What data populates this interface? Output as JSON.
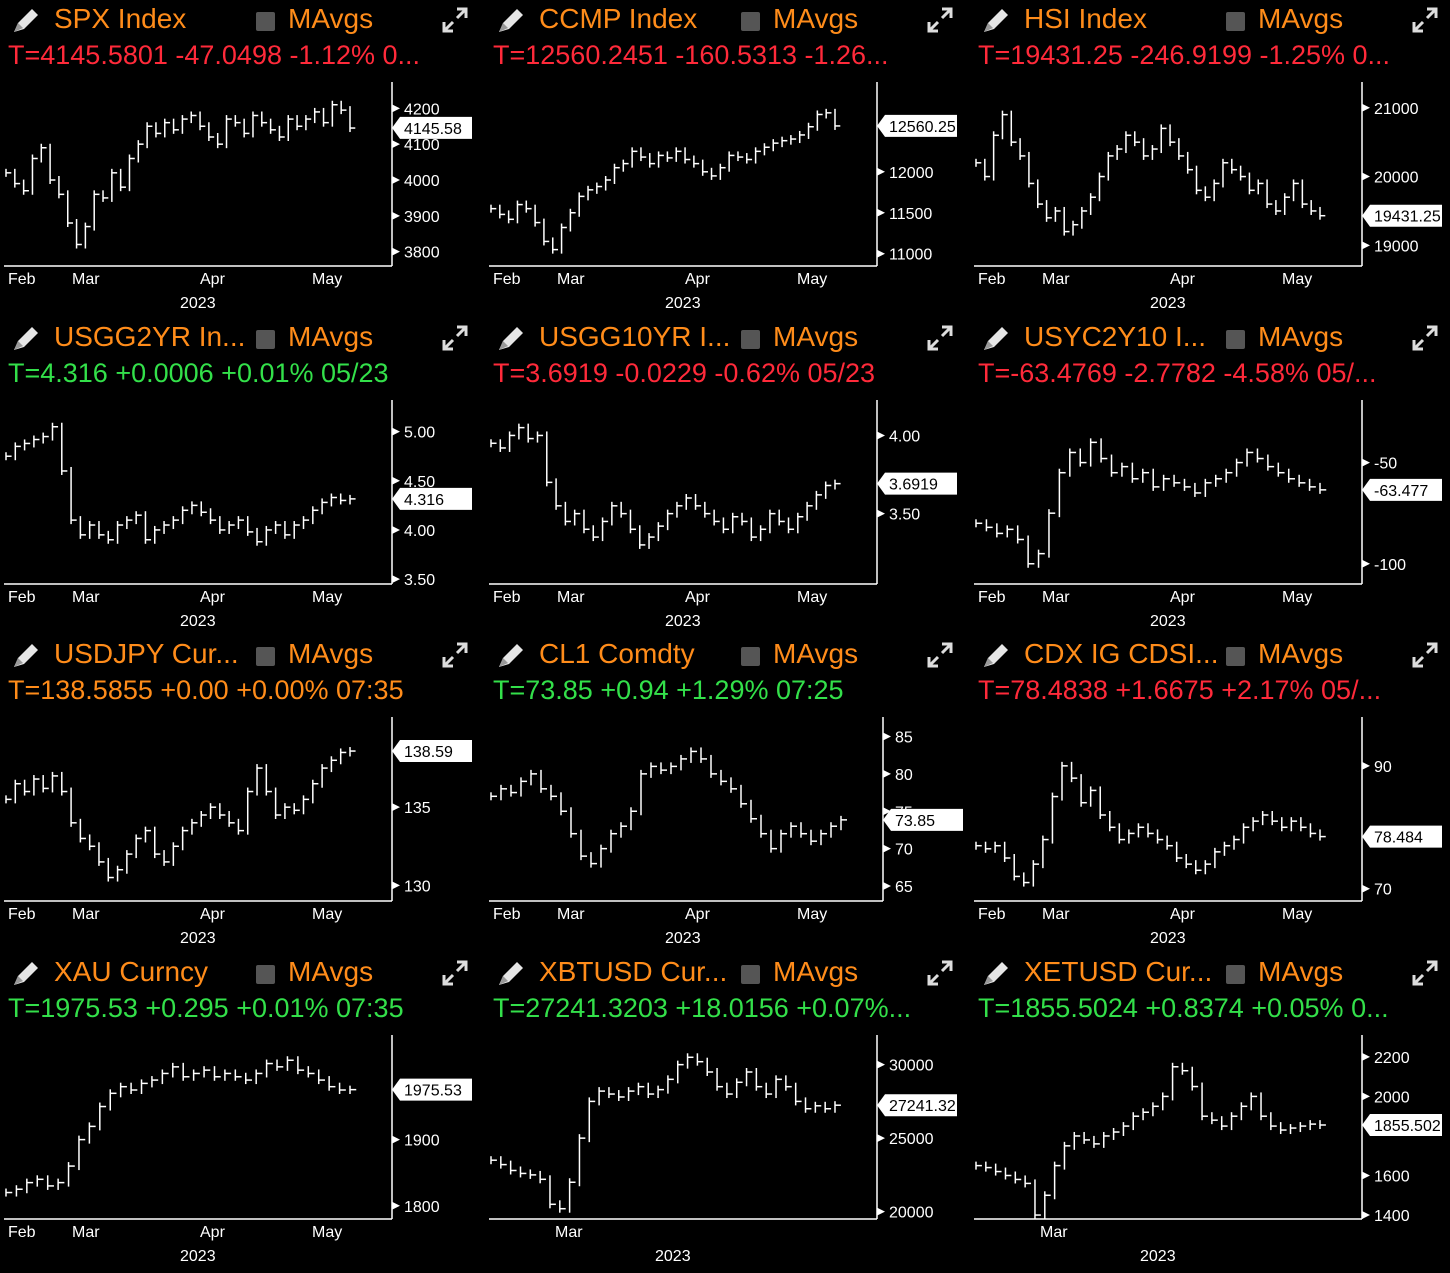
{
  "panels": [
    {
      "id": "spx",
      "title": "SPX Index",
      "mavgs": "MAvgs",
      "quote": "T=4145.5801 -47.0498 -1.12% 0...",
      "quote_color": "red",
      "yticks": [
        "4200",
        "4100",
        "4000",
        "3900",
        "3800"
      ],
      "ytick_vals": [
        4200,
        4100,
        4000,
        3900,
        3800
      ],
      "ymin": 3760,
      "ymax": 4240,
      "last_label": "4145.58",
      "last_val": 4145.58,
      "months": [
        "Feb",
        "Mar",
        "Apr",
        "May"
      ],
      "year": "2023",
      "series": [
        4020,
        3990,
        3970,
        4060,
        4090,
        4000,
        3960,
        3880,
        3820,
        3870,
        3960,
        3950,
        4020,
        3980,
        4060,
        4100,
        4150,
        4130,
        4160,
        4140,
        4170,
        4180,
        4150,
        4120,
        4100,
        4170,
        4160,
        4130,
        4180,
        4160,
        4140,
        4120,
        4170,
        4150,
        4170,
        4190,
        4160,
        4210,
        4195,
        4145
      ]
    },
    {
      "id": "ccmp",
      "title": "CCMP Index",
      "mavgs": "MAvgs",
      "quote": "T=12560.2451 -160.5313 -1.26...",
      "quote_color": "red",
      "yticks": [
        "12000",
        "11500",
        "11000"
      ],
      "ytick_vals": [
        12000,
        11500,
        11000
      ],
      "ymin": 10850,
      "ymax": 12950,
      "last_label": "12560.25",
      "last_val": 12560.25,
      "months": [
        "Feb",
        "Mar",
        "Apr",
        "May"
      ],
      "year": "2023",
      "series": [
        11550,
        11480,
        11420,
        11600,
        11550,
        11380,
        11150,
        11050,
        11320,
        11500,
        11700,
        11780,
        11820,
        11900,
        12050,
        12100,
        12250,
        12180,
        12100,
        12200,
        12170,
        12250,
        12150,
        12100,
        12000,
        11950,
        12050,
        12200,
        12180,
        12150,
        12250,
        12300,
        12350,
        12380,
        12400,
        12450,
        12550,
        12700,
        12720,
        12560
      ]
    },
    {
      "id": "hsi",
      "title": "HSI Index",
      "mavgs": "MAvgs",
      "quote": "T=19431.25 -246.9199 -1.25% 0...",
      "quote_color": "red",
      "yticks": [
        "21000",
        "20000",
        "19000"
      ],
      "ytick_vals": [
        21000,
        20000,
        19000
      ],
      "ymin": 18700,
      "ymax": 21200,
      "last_label": "19431.25",
      "last_val": 19431.25,
      "months": [
        "Feb",
        "Mar",
        "Apr",
        "May"
      ],
      "year": "2023",
      "series": [
        20200,
        20000,
        20600,
        20900,
        20500,
        20300,
        19900,
        19600,
        19400,
        19500,
        19200,
        19300,
        19500,
        19700,
        20000,
        20300,
        20400,
        20600,
        20500,
        20300,
        20400,
        20700,
        20500,
        20300,
        20100,
        19800,
        19700,
        19900,
        20200,
        20100,
        20000,
        19800,
        19900,
        19600,
        19500,
        19700,
        19900,
        19600,
        19500,
        19431
      ]
    },
    {
      "id": "usgg2yr",
      "title": "USGG2YR In...",
      "mavgs": "MAvgs",
      "quote": "T=4.316 +0.0006 +0.01% 05/23",
      "quote_color": "green",
      "yticks": [
        "5.00",
        "4.50",
        "4.00",
        "3.50"
      ],
      "ytick_vals": [
        5.0,
        4.5,
        4.0,
        3.5
      ],
      "ymin": 3.45,
      "ymax": 5.2,
      "last_label": "4.316",
      "last_val": 4.316,
      "months": [
        "Feb",
        "Mar",
        "Apr",
        "May"
      ],
      "year": "2023",
      "series": [
        4.75,
        4.85,
        4.88,
        4.92,
        4.95,
        5.05,
        4.6,
        4.1,
        3.95,
        4.05,
        3.95,
        3.9,
        4.05,
        4.1,
        4.15,
        3.9,
        4.0,
        4.05,
        4.1,
        4.2,
        4.25,
        4.18,
        4.1,
        4.0,
        4.05,
        4.1,
        3.98,
        3.88,
        4.0,
        4.05,
        3.95,
        4.05,
        4.1,
        4.2,
        4.28,
        4.33,
        4.3,
        4.316
      ]
    },
    {
      "id": "usgg10yr",
      "title": "USGG10YR I...",
      "mavgs": "MAvgs",
      "quote": "T=3.6919 -0.0229 -0.62% 05/23",
      "quote_color": "red",
      "yticks": [
        "4.00",
        "3.50"
      ],
      "ytick_vals": [
        4.0,
        3.5
      ],
      "ymin": 3.05,
      "ymax": 4.15,
      "last_label": "3.6919",
      "last_val": 3.6919,
      "months": [
        "Feb",
        "Mar",
        "Apr",
        "May"
      ],
      "year": "2023",
      "series": [
        3.95,
        3.92,
        4.0,
        4.05,
        3.98,
        4.0,
        3.7,
        3.55,
        3.45,
        3.5,
        3.4,
        3.35,
        3.45,
        3.55,
        3.5,
        3.4,
        3.3,
        3.35,
        3.42,
        3.5,
        3.55,
        3.6,
        3.55,
        3.5,
        3.45,
        3.4,
        3.48,
        3.45,
        3.35,
        3.4,
        3.5,
        3.45,
        3.4,
        3.48,
        3.55,
        3.62,
        3.68,
        3.6919
      ]
    },
    {
      "id": "usyc2y10",
      "title": "USYC2Y10 I...",
      "mavgs": "MAvgs",
      "quote": "T=-63.4769 -2.7782 -4.58% 05/...",
      "quote_color": "red",
      "yticks": [
        "-50",
        "-100"
      ],
      "ytick_vals": [
        -50,
        -100
      ],
      "ymin": -110,
      "ymax": -25,
      "last_label": "-63.477",
      "last_val": -63.477,
      "months": [
        "Feb",
        "Mar",
        "Apr",
        "May"
      ],
      "year": "2023",
      "series": [
        -80,
        -82,
        -85,
        -83,
        -88,
        -100,
        -95,
        -75,
        -55,
        -45,
        -50,
        -40,
        -48,
        -55,
        -52,
        -58,
        -55,
        -62,
        -58,
        -60,
        -62,
        -65,
        -60,
        -58,
        -55,
        -50,
        -45,
        -48,
        -52,
        -55,
        -58,
        -60,
        -62,
        -63.477
      ]
    },
    {
      "id": "usdjpy",
      "title": "USDJPY Cur...",
      "mavgs": "MAvgs",
      "quote": "T=138.5855 +0.00 +0.00% 07:35",
      "quote_color": "orange",
      "yticks": [
        "135",
        "130"
      ],
      "ytick_vals": [
        135,
        130
      ],
      "ymin": 129,
      "ymax": 140,
      "last_label": "138.59",
      "last_val": 138.59,
      "months": [
        "Feb",
        "Mar",
        "Apr",
        "May"
      ],
      "year": "2023",
      "series": [
        135.5,
        136.5,
        136.0,
        136.8,
        136.2,
        137.0,
        136.0,
        134.0,
        133.0,
        132.5,
        131.5,
        130.5,
        131.0,
        132.0,
        133.0,
        133.5,
        132.0,
        131.5,
        132.5,
        133.5,
        134.0,
        134.5,
        135.0,
        134.5,
        134.0,
        133.5,
        136.0,
        137.5,
        136.0,
        134.5,
        135.0,
        134.8,
        135.5,
        136.5,
        137.5,
        138.0,
        138.5,
        138.59
      ]
    },
    {
      "id": "cl1",
      "title": "CL1 Comdty",
      "mavgs": "MAvgs",
      "quote": "T=73.85 +0.94 +1.29% 07:25",
      "quote_color": "green",
      "yticks": [
        "85",
        "80",
        "75",
        "70",
        "65"
      ],
      "ytick_vals": [
        85,
        80,
        75,
        70,
        65
      ],
      "ymin": 63,
      "ymax": 86,
      "last_label": "73.85",
      "last_val": 73.85,
      "months": [
        "Feb",
        "Mar",
        "Apr",
        "May"
      ],
      "year": "2023",
      "series": [
        77,
        78,
        77.5,
        79,
        80,
        78,
        77,
        75,
        72,
        69,
        68,
        70,
        72,
        73,
        75,
        80,
        81,
        80.5,
        81,
        82,
        83,
        82,
        80,
        79,
        78,
        76,
        74,
        72,
        70,
        72,
        73,
        72,
        71,
        72,
        73,
        73.85
      ]
    },
    {
      "id": "cdxig",
      "title": "CDX IG CDSI...",
      "mavgs": "MAvgs",
      "quote": "T=78.4838 +1.6675 +2.17% 05/...",
      "quote_color": "red",
      "yticks": [
        "90",
        "70"
      ],
      "ytick_vals": [
        90,
        70
      ],
      "ymin": 68,
      "ymax": 96,
      "last_label": "78.484",
      "last_val": 78.484,
      "months": [
        "Feb",
        "Mar",
        "Apr",
        "May"
      ],
      "year": "2023",
      "series": [
        77,
        76.5,
        77,
        75,
        72,
        71,
        74,
        78,
        85,
        90,
        88,
        84,
        86,
        82,
        80,
        78,
        79,
        80,
        79,
        78,
        77,
        75,
        74,
        73,
        74,
        76,
        77,
        78,
        80,
        81,
        82,
        81,
        80,
        81,
        80,
        79,
        78.484
      ]
    },
    {
      "id": "xau",
      "title": "XAU Curncy",
      "mavgs": "MAvgs",
      "quote": "T=1975.53 +0.295 +0.01% 07:35",
      "quote_color": "green",
      "yticks": [
        "1900",
        "1800"
      ],
      "ytick_vals": [
        1900,
        1800
      ],
      "ymin": 1780,
      "ymax": 2040,
      "last_label": "1975.53",
      "last_val": 1975.53,
      "months": [
        "Feb",
        "Mar",
        "Apr",
        "May"
      ],
      "year": "2023",
      "series": [
        1820,
        1825,
        1835,
        1840,
        1830,
        1835,
        1860,
        1900,
        1920,
        1950,
        1970,
        1980,
        1975,
        1985,
        1990,
        2000,
        2010,
        1995,
        2000,
        2005,
        1995,
        2000,
        1995,
        1990,
        2000,
        2015,
        2010,
        2020,
        2005,
        2000,
        1990,
        1980,
        1975,
        1975.53
      ]
    },
    {
      "id": "xbtusd",
      "title": "XBTUSD Cur...",
      "mavgs": "MAvgs",
      "quote": "T=27241.3203 +18.0156 +0.07%...",
      "quote_color": "green",
      "yticks": [
        "30000",
        "25000",
        "20000"
      ],
      "ytick_vals": [
        30000,
        25000,
        20000
      ],
      "ymin": 19500,
      "ymax": 31200,
      "last_label": "27241.32",
      "last_val": 27241.32,
      "months": [
        "Mar"
      ],
      "year": "2023",
      "series": [
        23500,
        23200,
        22800,
        22600,
        22500,
        22200,
        20500,
        20200,
        22000,
        25000,
        27500,
        28200,
        28000,
        27800,
        28200,
        28500,
        28000,
        28300,
        29000,
        30000,
        30500,
        30200,
        29500,
        28500,
        28000,
        28800,
        29500,
        28500,
        28000,
        29000,
        28500,
        27500,
        27000,
        27200,
        27000,
        27241
      ]
    },
    {
      "id": "xetusd",
      "title": "XETUSD Cur...",
      "mavgs": "MAvgs",
      "quote": "T=1855.5024 +0.8374 +0.05% 0...",
      "quote_color": "green",
      "yticks": [
        "2200",
        "2000",
        "1600",
        "1400"
      ],
      "ytick_vals": [
        2200,
        2000,
        1600,
        1400
      ],
      "ymin": 1380,
      "ymax": 2250,
      "last_label": "1855.502",
      "last_val": 1855.502,
      "months": [
        "Mar"
      ],
      "year": "2023",
      "series": [
        1650,
        1640,
        1620,
        1600,
        1580,
        1560,
        1400,
        1500,
        1650,
        1750,
        1800,
        1780,
        1760,
        1800,
        1820,
        1850,
        1900,
        1920,
        1950,
        2000,
        2150,
        2130,
        2050,
        1900,
        1880,
        1850,
        1900,
        1950,
        2000,
        1900,
        1850,
        1830,
        1840,
        1850,
        1860,
        1855.5
      ]
    }
  ]
}
